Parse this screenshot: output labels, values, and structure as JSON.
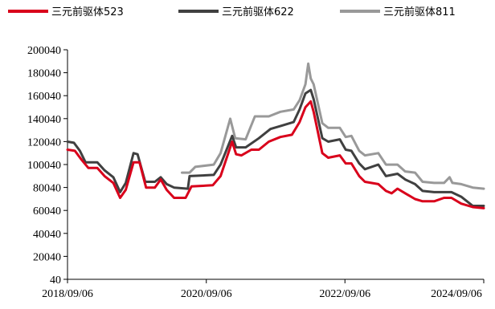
{
  "chart_data": {
    "type": "line",
    "title": "",
    "xlabel": "",
    "ylabel": "",
    "ylim": [
      40,
      200040
    ],
    "xlim": [
      "2018-09-06",
      "2024-09-06"
    ],
    "yticks": [
      40,
      20040,
      40040,
      60040,
      80040,
      100040,
      120040,
      140040,
      160040,
      180040,
      200040
    ],
    "xtick_labels": [
      "2018/09/06",
      "2020/09/06",
      "2022/09/06",
      "2024/09/06"
    ],
    "xtick_dates": [
      "2018-09-06",
      "2020-09-06",
      "2022-09-06",
      "2024-09-06"
    ],
    "grid": false,
    "legend": "top",
    "series": [
      {
        "name": "三元前驱体523",
        "color": "#d9001b",
        "points": [
          [
            "2018-09-06",
            113000
          ],
          [
            "2018-10-15",
            112000
          ],
          [
            "2018-11-20",
            104000
          ],
          [
            "2018-12-25",
            97000
          ],
          [
            "2019-02-10",
            97000
          ],
          [
            "2019-03-20",
            90000
          ],
          [
            "2019-05-05",
            84000
          ],
          [
            "2019-06-10",
            71000
          ],
          [
            "2019-07-10",
            78000
          ],
          [
            "2019-08-20",
            102000
          ],
          [
            "2019-09-20",
            102000
          ],
          [
            "2019-10-25",
            80000
          ],
          [
            "2019-12-10",
            80000
          ],
          [
            "2020-01-10",
            87000
          ],
          [
            "2020-02-10",
            78000
          ],
          [
            "2020-03-20",
            71000
          ],
          [
            "2020-05-20",
            71000
          ],
          [
            "2020-06-20",
            81000
          ],
          [
            "2020-10-10",
            82000
          ],
          [
            "2020-11-20",
            90000
          ],
          [
            "2021-01-20",
            120000
          ],
          [
            "2021-02-10",
            109000
          ],
          [
            "2021-03-10",
            108000
          ],
          [
            "2021-05-01",
            113000
          ],
          [
            "2021-06-10",
            113000
          ],
          [
            "2021-08-01",
            120000
          ],
          [
            "2021-10-01",
            124000
          ],
          [
            "2021-12-01",
            126000
          ],
          [
            "2022-01-10",
            137000
          ],
          [
            "2022-02-10",
            150000
          ],
          [
            "2022-03-10",
            155000
          ],
          [
            "2022-03-25",
            146000
          ],
          [
            "2022-05-10",
            110000
          ],
          [
            "2022-06-10",
            106000
          ],
          [
            "2022-08-10",
            108000
          ],
          [
            "2022-09-10",
            101000
          ],
          [
            "2022-10-10",
            101000
          ],
          [
            "2022-11-20",
            90000
          ],
          [
            "2022-12-20",
            85000
          ],
          [
            "2023-03-01",
            83000
          ],
          [
            "2023-04-10",
            77000
          ],
          [
            "2023-05-10",
            75000
          ],
          [
            "2023-06-10",
            79000
          ],
          [
            "2023-07-20",
            75000
          ],
          [
            "2023-09-10",
            70000
          ],
          [
            "2023-10-20",
            68000
          ],
          [
            "2023-12-20",
            68000
          ],
          [
            "2024-02-10",
            71000
          ],
          [
            "2024-03-20",
            71000
          ],
          [
            "2024-05-10",
            66000
          ],
          [
            "2024-07-10",
            63000
          ],
          [
            "2024-09-06",
            62000
          ]
        ]
      },
      {
        "name": "三元前驱体622",
        "color": "#404040",
        "points": [
          [
            "2018-09-06",
            120000
          ],
          [
            "2018-10-10",
            119000
          ],
          [
            "2018-11-10",
            112000
          ],
          [
            "2018-12-10",
            102000
          ],
          [
            "2019-02-10",
            102000
          ],
          [
            "2019-03-20",
            95000
          ],
          [
            "2019-05-05",
            89000
          ],
          [
            "2019-06-10",
            76000
          ],
          [
            "2019-07-10",
            84000
          ],
          [
            "2019-08-20",
            110000
          ],
          [
            "2019-09-10",
            109000
          ],
          [
            "2019-10-20",
            85000
          ],
          [
            "2019-12-10",
            85000
          ],
          [
            "2020-01-10",
            89000
          ],
          [
            "2020-02-10",
            83000
          ],
          [
            "2020-03-20",
            80000
          ],
          [
            "2020-06-01",
            79000
          ],
          [
            "2020-06-10",
            90000
          ],
          [
            "2020-10-15",
            91000
          ],
          [
            "2020-11-20",
            100000
          ],
          [
            "2021-01-20",
            125000
          ],
          [
            "2021-02-10",
            115000
          ],
          [
            "2021-04-01",
            115000
          ],
          [
            "2021-06-10",
            123000
          ],
          [
            "2021-08-10",
            131000
          ],
          [
            "2021-10-10",
            134000
          ],
          [
            "2021-12-10",
            137000
          ],
          [
            "2022-01-10",
            148000
          ],
          [
            "2022-02-10",
            162000
          ],
          [
            "2022-03-10",
            165000
          ],
          [
            "2022-03-25",
            157000
          ],
          [
            "2022-05-10",
            123000
          ],
          [
            "2022-06-10",
            120000
          ],
          [
            "2022-08-10",
            122000
          ],
          [
            "2022-09-10",
            113000
          ],
          [
            "2022-10-10",
            112000
          ],
          [
            "2022-11-20",
            101000
          ],
          [
            "2022-12-20",
            96000
          ],
          [
            "2023-03-01",
            100000
          ],
          [
            "2023-04-10",
            90000
          ],
          [
            "2023-06-10",
            92000
          ],
          [
            "2023-07-20",
            87000
          ],
          [
            "2023-09-10",
            83000
          ],
          [
            "2023-10-20",
            77000
          ],
          [
            "2023-12-20",
            76000
          ],
          [
            "2024-02-10",
            76000
          ],
          [
            "2024-03-20",
            76000
          ],
          [
            "2024-05-10",
            72000
          ],
          [
            "2024-07-10",
            64000
          ],
          [
            "2024-09-06",
            64000
          ]
        ]
      },
      {
        "name": "三元前驱体811",
        "color": "#999999",
        "points": [
          [
            "2020-05-01",
            93000
          ],
          [
            "2020-06-10",
            93000
          ],
          [
            "2020-07-10",
            98000
          ],
          [
            "2020-10-15",
            100000
          ],
          [
            "2020-11-20",
            110000
          ],
          [
            "2021-01-10",
            140000
          ],
          [
            "2021-02-05",
            123000
          ],
          [
            "2021-04-01",
            122000
          ],
          [
            "2021-05-20",
            142000
          ],
          [
            "2021-08-01",
            142000
          ],
          [
            "2021-10-01",
            146000
          ],
          [
            "2021-12-10",
            148000
          ],
          [
            "2022-01-10",
            156000
          ],
          [
            "2022-02-10",
            170000
          ],
          [
            "2022-02-25",
            188000
          ],
          [
            "2022-03-10",
            175000
          ],
          [
            "2022-03-25",
            170000
          ],
          [
            "2022-05-10",
            136000
          ],
          [
            "2022-06-10",
            132000
          ],
          [
            "2022-08-10",
            132000
          ],
          [
            "2022-09-10",
            124000
          ],
          [
            "2022-10-10",
            125000
          ],
          [
            "2022-11-20",
            112000
          ],
          [
            "2022-12-20",
            108000
          ],
          [
            "2023-03-01",
            110000
          ],
          [
            "2023-04-10",
            100000
          ],
          [
            "2023-06-10",
            100000
          ],
          [
            "2023-07-20",
            94000
          ],
          [
            "2023-09-10",
            93000
          ],
          [
            "2023-10-20",
            85000
          ],
          [
            "2023-12-20",
            84000
          ],
          [
            "2024-02-10",
            84000
          ],
          [
            "2024-03-10",
            89000
          ],
          [
            "2024-03-25",
            84000
          ],
          [
            "2024-05-10",
            83000
          ],
          [
            "2024-07-10",
            80000
          ],
          [
            "2024-09-06",
            79000
          ]
        ]
      }
    ]
  }
}
